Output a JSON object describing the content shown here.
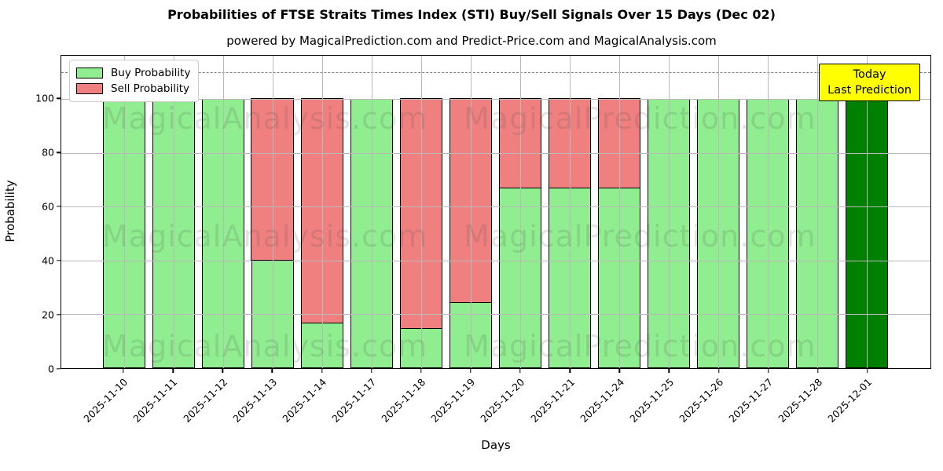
{
  "title": "Probabilities of FTSE Straits Times Index (STI) Buy/Sell Signals Over 15 Days (Dec 02)",
  "subtitle": "powered by MagicalPrediction.com and Predict-Price.com and MagicalAnalysis.com",
  "legend": {
    "buy_label": "Buy Probability",
    "sell_label": "Sell Probability"
  },
  "annotation_box": {
    "line1": "Today",
    "line2": "Last Prediction",
    "bg_color": "#ffff00"
  },
  "axes": {
    "xlabel": "Days",
    "ylabel": "Probability",
    "yticks": [
      0,
      20,
      40,
      60,
      80,
      100
    ]
  },
  "watermarks": [
    "MagicalAnalysis.com",
    "MagicalPrediction.com"
  ],
  "colors": {
    "buy": "#90EE90",
    "sell": "#F08080",
    "today_bar": "#008000",
    "grid": "#b9b9b9",
    "dashed": "#7f7f7f"
  },
  "chart_data": {
    "type": "bar",
    "stacked": true,
    "title": "Probabilities of FTSE Straits Times Index (STI) Buy/Sell Signals Over 15 Days (Dec 02)",
    "xlabel": "Days",
    "ylabel": "Probability",
    "ylim": [
      0,
      116
    ],
    "dashed_line_y": 110,
    "grid": true,
    "legend_position": "upper left",
    "categories": [
      "2025-11-10",
      "2025-11-11",
      "2025-11-12",
      "2025-11-13",
      "2025-11-14",
      "2025-11-17",
      "2025-11-18",
      "2025-11-19",
      "2025-11-20",
      "2025-11-21",
      "2025-11-24",
      "2025-11-25",
      "2025-11-26",
      "2025-11-27",
      "2025-11-28",
      "2025-12-01"
    ],
    "series": [
      {
        "name": "Buy Probability",
        "color": "#90EE90",
        "values": [
          100,
          100,
          100,
          39.5,
          16,
          100,
          14,
          23.5,
          66.5,
          66.5,
          66.5,
          100,
          100,
          100,
          100,
          100
        ]
      },
      {
        "name": "Sell Probability",
        "color": "#F08080",
        "values": [
          0,
          0,
          0,
          60.5,
          84,
          0,
          86,
          76.5,
          33.5,
          33.5,
          33.5,
          0,
          0,
          0,
          0,
          0
        ]
      }
    ],
    "last_bar_note": "final bar (2025-12-01) drawn in dark green as Today/Last Prediction",
    "last_bar_color": "#008000"
  }
}
